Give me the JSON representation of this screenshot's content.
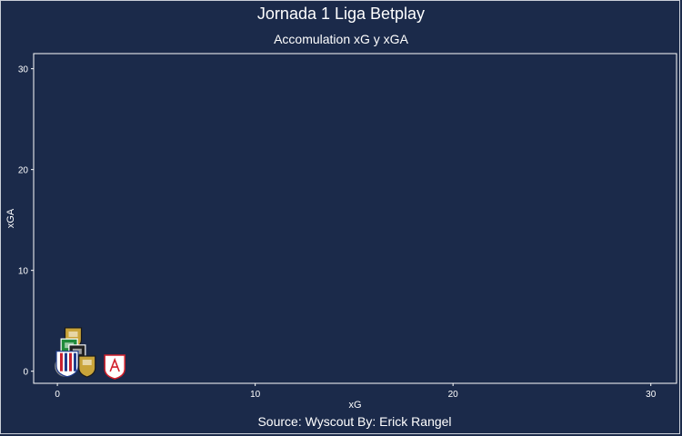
{
  "chart_data": {
    "type": "scatter",
    "title": "Jornada 1 Liga Betplay",
    "subtitle": "Accomulation xG y xGA",
    "caption": "Source: Wyscout  By: Erick Rangel",
    "xlabel": "xG",
    "ylabel": "xGA",
    "xlim": [
      -1.2,
      31.3
    ],
    "ylim": [
      -1.2,
      31.5
    ],
    "xticks": [
      0,
      10,
      20,
      30
    ],
    "yticks": [
      0,
      10,
      20,
      30
    ],
    "grid": false,
    "points": [
      {
        "x": 0.4,
        "y": 0.5,
        "marker": "logo-white"
      },
      {
        "x": 0.8,
        "y": 3.4,
        "marker": "logo-gold"
      },
      {
        "x": 0.6,
        "y": 2.3,
        "marker": "logo-green"
      },
      {
        "x": 1.0,
        "y": 1.7,
        "marker": "logo-dark"
      },
      {
        "x": 0.5,
        "y": 0.9,
        "marker": "logo-red-blue"
      },
      {
        "x": 1.5,
        "y": 0.6,
        "marker": "logo-gold"
      },
      {
        "x": 2.9,
        "y": 0.6,
        "marker": "logo-red"
      }
    ]
  },
  "colors": {
    "background": "#1b2a4a",
    "panel_border": "#ffffff",
    "text": "#ffffff"
  }
}
